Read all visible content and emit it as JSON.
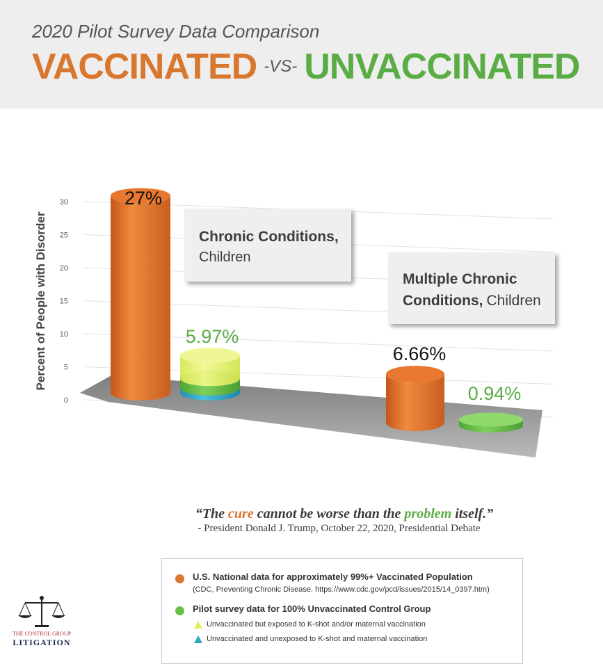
{
  "header": {
    "subtitle": "2020 Pilot Survey Data Comparison",
    "title_vaccinated": "VACCINATED",
    "title_vs": "-VS-",
    "title_unvaccinated": "UNVACCINATED"
  },
  "chart_data": {
    "type": "bar",
    "ylabel": "Percent of People with Disorder",
    "ylim": [
      0,
      30
    ],
    "yticks": [
      "0",
      "5",
      "10",
      "15",
      "20",
      "25",
      "30"
    ],
    "categories": [
      "Chronic Conditions, Children",
      "Multiple Chronic Conditions, Children"
    ],
    "category_labels": [
      {
        "bold": "Chronic Conditions,",
        "normal": "Children"
      },
      {
        "bold1": "Multiple Chronic",
        "bold2": "Conditions,",
        "normal": "Children"
      }
    ],
    "series": [
      {
        "values": [
          27,
          6.66
        ],
        "labels": [
          "27%",
          "6.66%"
        ],
        "color": "#e0702a"
      },
      {
        "values": [
          5.97,
          0.94
        ],
        "labels": [
          "5.97%",
          "0.94%"
        ],
        "color": "#6cc04a"
      }
    ],
    "sub_segments": [
      {
        "category": 0,
        "yellow_top": 5.97,
        "green_top": 2.3,
        "blue_top": 0.8
      }
    ],
    "colors": {
      "orange": "#e0702a",
      "green": "#6cc04a",
      "yellow": "#e4ef5c",
      "blue": "#2ea7c9",
      "label_green": "#5aac45"
    }
  },
  "quote": {
    "open": "“The ",
    "cure": "cure",
    "mid": " cannot be worse than the ",
    "problem": "problem",
    "close": " itself.”",
    "attribution": "- President Donald J. Trump, October 22, 2020, Presidential Debate"
  },
  "legend": {
    "vaccinated_title": "U.S. National data for approximately 99%+ Vaccinated Population",
    "vaccinated_source": "(CDC, Preventing Chronic Disease. https://www.cdc.gov/pcd/issues/2015/14_0397.htm)",
    "unvaccinated_title": "Pilot survey data for 100% Unvaccinated Control Group",
    "exposed": "Unvaccinated but exposed to K-shot and/or maternal vaccination",
    "unexposed": "Unvaccinated and unexposed to K-shot and maternal vaccination"
  },
  "logo": {
    "line1": "THE CONTROL GROUP",
    "line2": "LITIGATION"
  }
}
